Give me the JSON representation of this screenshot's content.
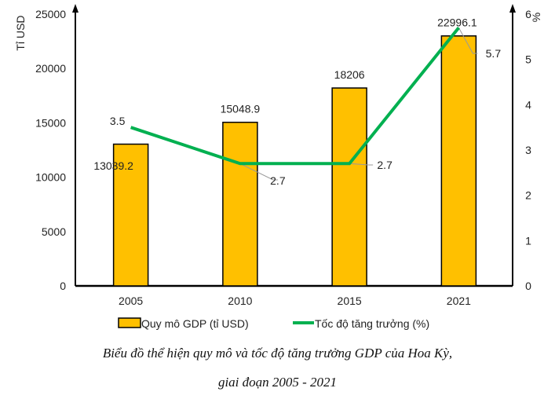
{
  "chart_data": {
    "type": "bar+line",
    "title": "Biểu đồ thể hiện quy mô và tốc độ tăng trưởng GDP của Hoa Kỳ,",
    "subtitle": "giai đoạn 2005 - 2021",
    "categories": [
      "2005",
      "2010",
      "2015",
      "2021"
    ],
    "left_axis": {
      "label": "Tỉ USD",
      "ylim": [
        0,
        25000
      ],
      "ticks": [
        0,
        5000,
        10000,
        15000,
        20000,
        25000
      ]
    },
    "right_axis": {
      "label": "%",
      "ylim": [
        0,
        6
      ],
      "ticks": [
        0,
        1,
        2,
        3,
        4,
        5,
        6
      ]
    },
    "series": [
      {
        "name": "Quy mô GDP (tỉ USD)",
        "type": "bar",
        "axis": "left",
        "color": "#FFC000",
        "values": [
          13039.2,
          15048.9,
          18206,
          22996.1
        ],
        "labels": [
          "13039.2",
          "15048.9",
          "18206",
          "22996.1"
        ]
      },
      {
        "name": "Tốc độ tăng trưởng (%)",
        "type": "line",
        "axis": "right",
        "color": "#00B050",
        "values": [
          3.5,
          2.7,
          2.7,
          5.7
        ],
        "labels": [
          "3.5",
          "2.7",
          "2.7",
          "5.7"
        ]
      }
    ],
    "legend_position": "bottom",
    "grid": false
  }
}
